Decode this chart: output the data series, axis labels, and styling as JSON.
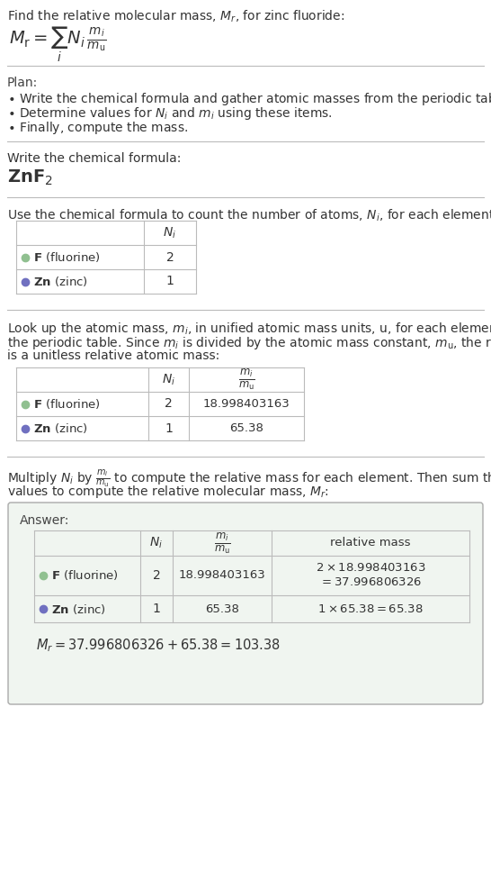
{
  "title_line": "Find the relative molecular mass, $M_r$, for zinc fluoride:",
  "formula_display": "$M_{\\rm r} = \\sum_{i} N_i\\,\\frac{m_i}{m_{\\rm u}}$",
  "plan_header": "Plan:",
  "plan_items": [
    "$\\bullet$ Write the chemical formula and gather atomic masses from the periodic table.",
    "$\\bullet$ Determine values for $N_i$ and $m_i$ using these items.",
    "$\\bullet$ Finally, compute the mass."
  ],
  "formula_section_label": "Write the chemical formula:",
  "chemical_formula": "ZnF$_2$",
  "count_section_label": "Use the chemical formula to count the number of atoms, $N_i$, for each element:",
  "table1_dot_colors": [
    "#90C090",
    "#7070C0"
  ],
  "table1_elements": [
    "$\\bf{F}$ (fluorine)",
    "$\\bf{Zn}$ (zinc)"
  ],
  "table1_Ni": [
    "2",
    "1"
  ],
  "lookup_text_lines": [
    "Look up the atomic mass, $m_i$, in unified atomic mass units, u, for each element in",
    "the periodic table. Since $m_i$ is divided by the atomic mass constant, $m_{\\rm u}$, the result",
    "is a unitless relative atomic mass:"
  ],
  "table2_dot_colors": [
    "#90C090",
    "#7070C0"
  ],
  "table2_elements": [
    "$\\bf{F}$ (fluorine)",
    "$\\bf{Zn}$ (zinc)"
  ],
  "table2_Ni": [
    "2",
    "1"
  ],
  "table2_mi": [
    "18.998403163",
    "65.38"
  ],
  "multiply_text_lines": [
    "Multiply $N_i$ by $\\frac{m_i}{m_{\\rm u}}$ to compute the relative mass for each element. Then sum those",
    "values to compute the relative molecular mass, $M_r$:"
  ],
  "answer_label": "Answer:",
  "table3_dot_colors": [
    "#90C090",
    "#7070C0"
  ],
  "table3_elements": [
    "$\\bf{F}$ (fluorine)",
    "$\\bf{Zn}$ (zinc)"
  ],
  "table3_Ni": [
    "2",
    "1"
  ],
  "table3_mi": [
    "18.998403163",
    "65.38"
  ],
  "table3_rel_mass_line1": [
    "$2 \\times 18.998403163$",
    "$1 \\times 65.38 = 65.38$"
  ],
  "table3_rel_mass_line2": [
    "$= 37.996806326$",
    ""
  ],
  "final_answer": "$M_r = 37.996806326 + 65.38 = 103.38$",
  "bg_color": "#FFFFFF",
  "text_color": "#333333",
  "border_color": "#BBBBBB",
  "answer_box_color": "#F0F5F0",
  "font_size": 10
}
